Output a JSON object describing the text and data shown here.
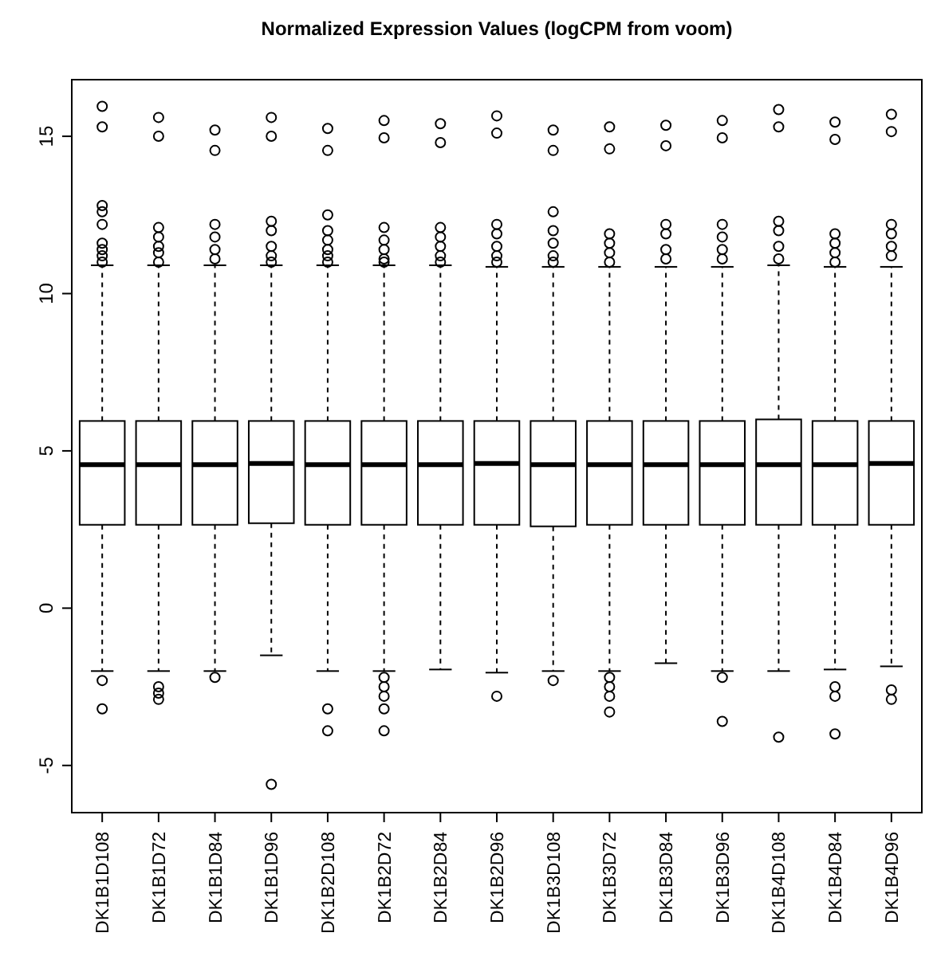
{
  "chart_data": {
    "type": "box",
    "title": "Normalized Expression Values (logCPM from voom)",
    "categories": [
      "DK1B1D108",
      "DK1B1D72",
      "DK1B1D84",
      "DK1B1D96",
      "DK1B2D108",
      "DK1B2D72",
      "DK1B2D84",
      "DK1B2D96",
      "DK1B3D108",
      "DK1B3D72",
      "DK1B3D84",
      "DK1B3D96",
      "DK1B4D108",
      "DK1B4D84",
      "DK1B4D96"
    ],
    "ylim": [
      -6.5,
      16.8
    ],
    "yticks": [
      -5,
      0,
      5,
      10,
      15
    ],
    "grid": false,
    "line_style": "dashed",
    "marker": "circle",
    "boxes": [
      {
        "low": -2,
        "q1": 2.65,
        "median": 4.56,
        "q3": 5.95,
        "high": 10.9,
        "outliers": [
          15.95,
          15.3,
          12.8,
          12.6,
          12.2,
          11.6,
          11.4,
          11.2,
          11.0,
          -2.3,
          -3.2
        ]
      },
      {
        "low": -2,
        "q1": 2.65,
        "median": 4.56,
        "q3": 5.95,
        "high": 10.9,
        "outliers": [
          15.6,
          15.0,
          12.1,
          11.8,
          11.5,
          11.3,
          11.0,
          -2.5,
          -2.7,
          -2.9
        ]
      },
      {
        "low": -2,
        "q1": 2.65,
        "median": 4.56,
        "q3": 5.95,
        "high": 10.9,
        "outliers": [
          15.2,
          14.55,
          12.2,
          11.8,
          11.4,
          11.1,
          -2.2
        ]
      },
      {
        "low": -1.5,
        "q1": 2.7,
        "median": 4.6,
        "q3": 5.95,
        "high": 10.9,
        "outliers": [
          15.6,
          15.0,
          12.3,
          12.0,
          11.5,
          11.2,
          11.0,
          -5.6
        ]
      },
      {
        "low": -2,
        "q1": 2.65,
        "median": 4.56,
        "q3": 5.95,
        "high": 10.9,
        "outliers": [
          15.25,
          14.55,
          12.5,
          12.0,
          11.7,
          11.4,
          11.2,
          11.0,
          -3.2,
          -3.9
        ]
      },
      {
        "low": -2,
        "q1": 2.65,
        "median": 4.56,
        "q3": 5.95,
        "high": 10.9,
        "outliers": [
          15.5,
          14.95,
          12.1,
          11.7,
          11.4,
          11.1,
          11.0,
          -2.2,
          -2.5,
          -2.8,
          -3.2,
          -3.9
        ]
      },
      {
        "low": -1.95,
        "q1": 2.65,
        "median": 4.56,
        "q3": 5.95,
        "high": 10.9,
        "outliers": [
          15.4,
          14.8,
          12.1,
          11.8,
          11.5,
          11.2,
          11.0
        ]
      },
      {
        "low": -2.05,
        "q1": 2.65,
        "median": 4.6,
        "q3": 5.95,
        "high": 10.85,
        "outliers": [
          15.65,
          15.1,
          12.2,
          11.9,
          11.5,
          11.2,
          11.0,
          -2.8
        ]
      },
      {
        "low": -2,
        "q1": 2.6,
        "median": 4.56,
        "q3": 5.95,
        "high": 10.85,
        "outliers": [
          15.2,
          14.55,
          12.6,
          12.0,
          11.6,
          11.2,
          11.0,
          -2.3
        ]
      },
      {
        "low": -2,
        "q1": 2.65,
        "median": 4.56,
        "q3": 5.95,
        "high": 10.85,
        "outliers": [
          15.3,
          14.6,
          11.9,
          11.6,
          11.3,
          11.0,
          -2.2,
          -2.5,
          -2.8,
          -3.3
        ]
      },
      {
        "low": -1.75,
        "q1": 2.65,
        "median": 4.56,
        "q3": 5.95,
        "high": 10.85,
        "outliers": [
          15.35,
          14.7,
          12.2,
          11.9,
          11.4,
          11.1
        ]
      },
      {
        "low": -2,
        "q1": 2.65,
        "median": 4.56,
        "q3": 5.95,
        "high": 10.85,
        "outliers": [
          15.5,
          14.95,
          12.2,
          11.8,
          11.4,
          11.1,
          -2.2,
          -3.6
        ]
      },
      {
        "low": -2,
        "q1": 2.65,
        "median": 4.56,
        "q3": 6.0,
        "high": 10.9,
        "outliers": [
          15.85,
          15.3,
          12.3,
          12.0,
          11.5,
          11.1,
          -4.1
        ]
      },
      {
        "low": -1.95,
        "q1": 2.65,
        "median": 4.56,
        "q3": 5.95,
        "high": 10.85,
        "outliers": [
          15.45,
          14.9,
          11.9,
          11.6,
          11.3,
          11.0,
          -2.5,
          -2.8,
          -4.0
        ]
      },
      {
        "low": -1.85,
        "q1": 2.65,
        "median": 4.6,
        "q3": 5.95,
        "high": 10.85,
        "outliers": [
          15.7,
          15.15,
          12.2,
          11.9,
          11.5,
          11.2,
          -2.6,
          -2.9
        ]
      }
    ]
  }
}
